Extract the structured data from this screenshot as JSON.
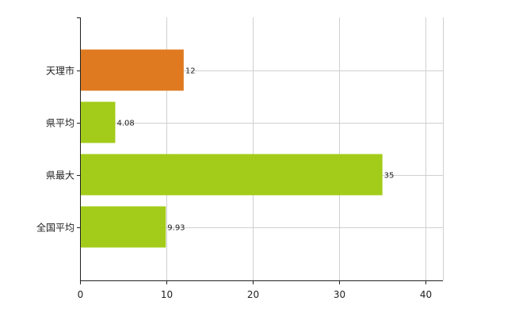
{
  "chart_data": {
    "type": "bar",
    "orientation": "horizontal",
    "categories": [
      "天理市",
      "県平均",
      "県最大",
      "全国平均"
    ],
    "values": [
      12,
      4.08,
      35,
      9.93
    ],
    "data_labels": [
      "12",
      "4.08",
      "35",
      "9.93"
    ],
    "bar_colors": [
      "#e07a20",
      "#a3cc1a",
      "#a3cc1a",
      "#a3cc1a"
    ],
    "xlim": [
      0,
      42
    ],
    "xticks": [
      0,
      10,
      20,
      30,
      40
    ],
    "xtick_labels": [
      "0",
      "10",
      "20",
      "30",
      "40"
    ],
    "grid": true,
    "title": "",
    "xlabel": "",
    "ylabel": ""
  }
}
